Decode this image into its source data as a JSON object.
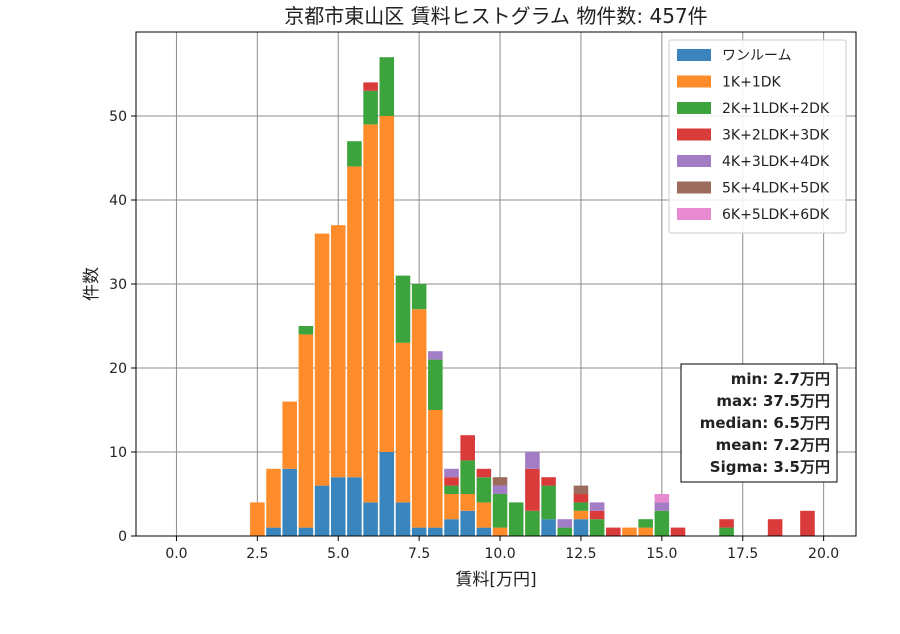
{
  "chart_data": {
    "type": "bar",
    "stacked": true,
    "title": "京都市東山区 賃料ヒストグラム 物件数: 457件",
    "xlabel": "賃料[万円]",
    "ylabel": "件数",
    "xlim": [
      -1.25,
      21.0
    ],
    "ylim": [
      0,
      60
    ],
    "xticks": [
      0.0,
      2.5,
      5.0,
      7.5,
      10.0,
      12.5,
      15.0,
      17.5,
      20.0
    ],
    "xtick_labels": [
      "0.0",
      "2.5",
      "5.0",
      "7.5",
      "10.0",
      "12.5",
      "15.0",
      "17.5",
      "20.0"
    ],
    "yticks": [
      0,
      10,
      20,
      30,
      40,
      50
    ],
    "ytick_labels": [
      "0",
      "10",
      "20",
      "30",
      "40",
      "50"
    ],
    "grid": true,
    "legend_position": "top-right",
    "bin_width": 0.5,
    "bar_width": 0.45,
    "x": [
      2.5,
      3.0,
      3.5,
      4.0,
      4.5,
      5.0,
      5.5,
      6.0,
      6.5,
      7.0,
      7.5,
      8.0,
      8.5,
      9.0,
      9.5,
      10.0,
      10.5,
      11.0,
      11.5,
      12.0,
      12.5,
      13.0,
      13.5,
      14.0,
      14.5,
      15.0,
      15.5,
      17.0,
      18.5,
      19.5
    ],
    "series": [
      {
        "name": "ワンルーム",
        "color": "#3a85bd",
        "values": [
          0,
          1,
          8,
          1,
          6,
          7,
          7,
          4,
          10,
          4,
          1,
          1,
          2,
          3,
          1,
          0,
          0,
          0,
          2,
          0,
          2,
          0,
          0,
          0,
          0,
          0,
          0,
          0,
          0,
          0
        ]
      },
      {
        "name": "1K+1DK",
        "color": "#ff8c2a",
        "values": [
          4,
          7,
          8,
          23,
          30,
          30,
          37,
          45,
          40,
          19,
          26,
          14,
          3,
          2,
          3,
          1,
          0,
          0,
          0,
          0,
          1,
          0,
          0,
          1,
          1,
          0,
          0,
          0,
          0,
          0
        ]
      },
      {
        "name": "2K+1LDK+2DK",
        "color": "#3da33d",
        "values": [
          0,
          0,
          0,
          1,
          0,
          0,
          3,
          4,
          7,
          8,
          3,
          6,
          1,
          4,
          3,
          4,
          4,
          3,
          4,
          1,
          1,
          2,
          0,
          0,
          1,
          3,
          0,
          1,
          0,
          0
        ]
      },
      {
        "name": "3K+2LDK+3DK",
        "color": "#d93a3a",
        "values": [
          0,
          0,
          0,
          0,
          0,
          0,
          0,
          1,
          0,
          0,
          0,
          0,
          1,
          3,
          1,
          0,
          0,
          5,
          1,
          0,
          1,
          1,
          1,
          0,
          0,
          0,
          1,
          1,
          2,
          3
        ]
      },
      {
        "name": "4K+3LDK+4DK",
        "color": "#a37cc6",
        "values": [
          0,
          0,
          0,
          0,
          0,
          0,
          0,
          0,
          0,
          0,
          0,
          1,
          1,
          0,
          0,
          1,
          0,
          2,
          0,
          1,
          0,
          1,
          0,
          0,
          0,
          1,
          0,
          0,
          0,
          0
        ]
      },
      {
        "name": "5K+4LDK+5DK",
        "color": "#9b6b5e",
        "values": [
          0,
          0,
          0,
          0,
          0,
          0,
          0,
          0,
          0,
          0,
          0,
          0,
          0,
          0,
          0,
          1,
          0,
          0,
          0,
          0,
          1,
          0,
          0,
          0,
          0,
          0,
          0,
          0,
          0,
          0
        ]
      },
      {
        "name": "6K+5LDK+6DK",
        "color": "#e78ad0",
        "values": [
          0,
          0,
          0,
          0,
          0,
          0,
          0,
          0,
          0,
          0,
          0,
          0,
          0,
          0,
          0,
          0,
          0,
          0,
          0,
          0,
          0,
          0,
          0,
          0,
          0,
          1,
          0,
          0,
          0,
          0
        ]
      }
    ],
    "annotation": [
      "min: 2.7万円",
      "max: 37.5万円",
      "median: 6.5万円",
      "mean: 7.2万円",
      "Sigma: 3.5万円"
    ]
  }
}
